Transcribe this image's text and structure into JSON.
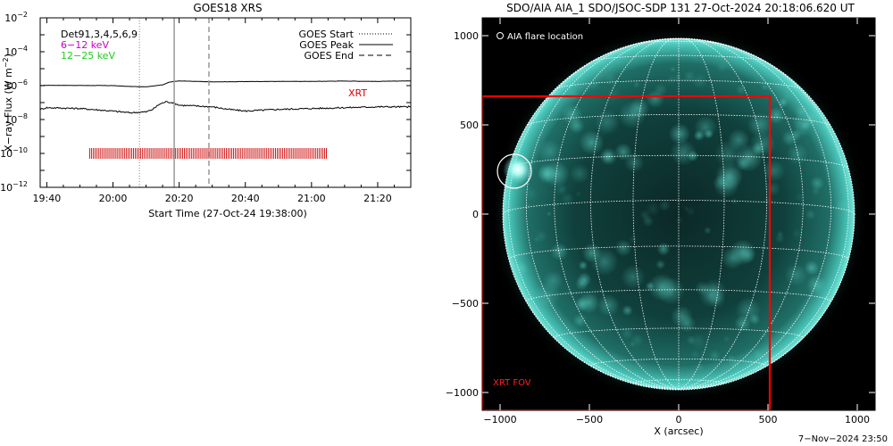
{
  "chart_data": [
    {
      "type": "line",
      "title": "GOES18 XRS",
      "xlabel": "Start Time (27-Oct-24 19:38:00)",
      "ylabel": "X-ray Flux (W m^-2)",
      "ylabel_base": "X−ray Flux (W m",
      "ylabel_sup": "−2",
      "ylabel_close": ")",
      "y_scale": "log",
      "ylim_exp": [
        -12,
        -2
      ],
      "xlim_min": [
        -2,
        110
      ],
      "x_ticks": [
        {
          "min": 0,
          "label": "19:40"
        },
        {
          "min": 20,
          "label": "20:00"
        },
        {
          "min": 40,
          "label": "20:20"
        },
        {
          "min": 60,
          "label": "20:40"
        },
        {
          "min": 80,
          "label": "21:00"
        },
        {
          "min": 100,
          "label": "21:20"
        }
      ],
      "y_ticks": [
        {
          "exp": -2,
          "label": "10",
          "sup": "−2"
        },
        {
          "exp": -4,
          "label": "10",
          "sup": "−4"
        },
        {
          "exp": -6,
          "label": "10",
          "sup": "−6"
        },
        {
          "exp": -8,
          "label": "10",
          "sup": "−8"
        },
        {
          "exp": -10,
          "label": "10",
          "sup": "−10"
        },
        {
          "exp": -12,
          "label": "10",
          "sup": "−12"
        }
      ],
      "text_labels": {
        "detectors": "Det91,3,4,5,6,9",
        "band_low": "6−12 keV",
        "band_high": "12−25 keV",
        "xrt": "XRT"
      },
      "legend": {
        "placement": "top-right",
        "entries": [
          "GOES Start",
          "GOES Peak",
          "GOES End"
        ]
      },
      "markers": {
        "start_min": 28,
        "peak_min": 38.5,
        "end_min": 49
      },
      "series": [
        {
          "name": "6−12 keV",
          "color": "#000000",
          "x_min": [
            -2,
            0,
            10,
            20,
            25,
            30,
            35,
            37,
            38.5,
            40,
            45,
            50,
            60,
            70,
            80,
            90,
            100,
            110
          ],
          "log_flux": [
            -6.0,
            -5.98,
            -5.99,
            -6.0,
            -6.05,
            -6.07,
            -5.95,
            -5.8,
            -5.75,
            -5.72,
            -5.75,
            -5.78,
            -5.76,
            -5.75,
            -5.75,
            -5.73,
            -5.75,
            -5.72
          ]
        },
        {
          "name": "12−25 keV",
          "color": "#000000",
          "x_min": [
            -2,
            0,
            10,
            20,
            25,
            30,
            32,
            34,
            36,
            38,
            40,
            45,
            50,
            55,
            60,
            65,
            70,
            80,
            90,
            100,
            110
          ],
          "log_flux": [
            -7.4,
            -7.3,
            -7.35,
            -7.5,
            -7.6,
            -7.55,
            -7.4,
            -7.1,
            -6.95,
            -7.0,
            -7.15,
            -7.2,
            -7.25,
            -7.4,
            -7.5,
            -7.45,
            -7.4,
            -7.35,
            -7.3,
            -7.25,
            -7.25
          ]
        }
      ],
      "xrt_obs": {
        "color": "#cc0000",
        "x_start_min": 13,
        "x_end_min": 85,
        "log_flux": -10.0
      }
    },
    {
      "type": "image",
      "title": "SDO/AIA AIA_1 SDO/JSOC-SDP 131 27-Oct-2024 20:18:06.620 UT",
      "xlabel": "X (arcsec)",
      "ylabel": "",
      "xlim": [
        -1100,
        1100
      ],
      "ylim": [
        -1100,
        1100
      ],
      "x_ticks": [
        -1000,
        -500,
        0,
        500,
        1000
      ],
      "y_ticks": [
        -1000,
        -500,
        0,
        500,
        1000
      ],
      "x_tick_labels": [
        "−1000",
        "−500",
        "0",
        "500",
        "1000"
      ],
      "y_tick_labels": [
        "−1000",
        "−500",
        "0",
        "500",
        "1000"
      ],
      "solar_radius_arcsec": 985,
      "flare_location": {
        "label": "AIA flare location",
        "x": -920,
        "y": 240,
        "radius": 95
      },
      "xrt_fov": {
        "label": "XRT FOV",
        "x": [
          -1100,
          510
        ],
        "y": [
          -1100,
          660
        ],
        "color": "#ff0000"
      },
      "colors": {
        "disk_glow": "#4fd6c9",
        "disk_dark": "#0c2b29",
        "grid": "#ffffff"
      }
    }
  ],
  "footer": "7−Nov−2024 23:50"
}
